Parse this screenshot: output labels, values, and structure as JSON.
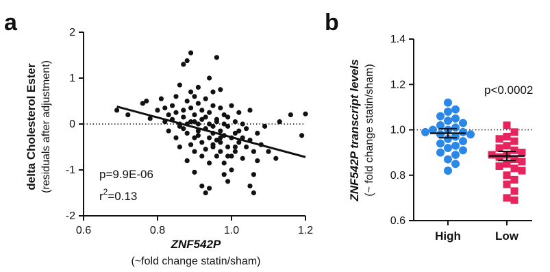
{
  "panels": {
    "a": "a",
    "b": "b"
  },
  "chart_data": [
    {
      "type": "scatter",
      "panel": "a",
      "xlabel": "ZNF542P",
      "xlabel_sub": "(~fold change statin/sham)",
      "ylabel": "delta Cholesterol Ester",
      "ylabel_sub": "(residuals after adjustment)",
      "xlim": [
        0.6,
        1.2
      ],
      "ylim": [
        -2,
        2
      ],
      "x_ticks": [
        "0.6",
        "0.8",
        "1.0",
        "1.2"
      ],
      "y_ticks": [
        "2",
        "1",
        "0",
        "-1",
        "-2"
      ],
      "x_tick_values": [
        0.6,
        0.8,
        1.0,
        1.2
      ],
      "y_tick_values": [
        2,
        1,
        0,
        -1,
        -2
      ],
      "reference_line": {
        "y": 0,
        "style": "dotted"
      },
      "regression_line": {
        "x": [
          0.69,
          1.2
        ],
        "y": [
          0.38,
          -0.72
        ]
      },
      "annotations": {
        "p_value": "p=9.9E-06",
        "r2_base": "r",
        "r2_sup": "2",
        "r2_value": "=0.13"
      },
      "points": [
        [
          0.69,
          0.3
        ],
        [
          0.72,
          0.2
        ],
        [
          0.76,
          0.45
        ],
        [
          0.77,
          0.5
        ],
        [
          0.78,
          0.12
        ],
        [
          0.8,
          0.3
        ],
        [
          0.81,
          0.55
        ],
        [
          0.82,
          0.05
        ],
        [
          0.82,
          0.35
        ],
        [
          0.83,
          0.2
        ],
        [
          0.83,
          -0.15
        ],
        [
          0.84,
          0.4
        ],
        [
          0.84,
          0.1
        ],
        [
          0.85,
          0.25
        ],
        [
          0.85,
          -0.3
        ],
        [
          0.85,
          0.6
        ],
        [
          0.86,
          0.0
        ],
        [
          0.86,
          0.85
        ],
        [
          0.86,
          -0.5
        ],
        [
          0.87,
          0.3
        ],
        [
          0.87,
          -0.1
        ],
        [
          0.87,
          0.15
        ],
        [
          0.87,
          1.3
        ],
        [
          0.88,
          -0.2
        ],
        [
          0.88,
          0.5
        ],
        [
          0.88,
          -0.8
        ],
        [
          0.88,
          1.38
        ],
        [
          0.89,
          0.05
        ],
        [
          0.89,
          1.55
        ],
        [
          0.89,
          -0.45
        ],
        [
          0.89,
          0.35
        ],
        [
          0.89,
          0.7
        ],
        [
          0.9,
          0.2
        ],
        [
          0.9,
          -0.3
        ],
        [
          0.9,
          -0.6
        ],
        [
          0.9,
          0.6
        ],
        [
          0.9,
          -1.05
        ],
        [
          0.91,
          0.0
        ],
        [
          0.91,
          -0.15
        ],
        [
          0.91,
          0.45
        ],
        [
          0.91,
          -0.25
        ],
        [
          0.91,
          0.8
        ],
        [
          0.92,
          0.1
        ],
        [
          0.92,
          -0.4
        ],
        [
          0.92,
          -1.35
        ],
        [
          0.92,
          -0.7
        ],
        [
          0.92,
          0.3
        ],
        [
          0.93,
          0.55
        ],
        [
          0.93,
          0.15
        ],
        [
          0.93,
          -0.1
        ],
        [
          0.93,
          -0.55
        ],
        [
          0.93,
          -1.5
        ],
        [
          0.94,
          0.0
        ],
        [
          0.94,
          -0.3
        ],
        [
          0.94,
          0.25
        ],
        [
          0.94,
          1.0
        ],
        [
          0.94,
          -0.85
        ],
        [
          0.94,
          -1.4
        ],
        [
          0.95,
          0.7
        ],
        [
          0.95,
          -0.05
        ],
        [
          0.95,
          -0.5
        ],
        [
          0.95,
          0.4
        ],
        [
          0.95,
          -0.2
        ],
        [
          0.96,
          0.1
        ],
        [
          0.96,
          1.45
        ],
        [
          0.96,
          -0.35
        ],
        [
          0.96,
          -0.7
        ],
        [
          0.96,
          0.05
        ],
        [
          0.97,
          -0.6
        ],
        [
          0.97,
          -0.15
        ],
        [
          0.97,
          0.35
        ],
        [
          0.97,
          -0.4
        ],
        [
          0.97,
          0.75
        ],
        [
          0.98,
          0.0
        ],
        [
          0.98,
          -1.1
        ],
        [
          0.98,
          -0.25
        ],
        [
          0.98,
          0.2
        ],
        [
          0.98,
          -0.85
        ],
        [
          0.99,
          -1.25
        ],
        [
          0.99,
          -0.5
        ],
        [
          0.99,
          0.15
        ],
        [
          0.99,
          -0.05
        ],
        [
          1.0,
          -0.3
        ],
        [
          1.0,
          -0.7
        ],
        [
          1.0,
          0.4
        ],
        [
          1.0,
          -1.0
        ],
        [
          1.01,
          0.05
        ],
        [
          1.01,
          -0.2
        ],
        [
          1.01,
          -0.6
        ],
        [
          1.02,
          -0.15
        ],
        [
          1.02,
          -0.4
        ],
        [
          1.02,
          0.25
        ],
        [
          1.03,
          -0.75
        ],
        [
          1.03,
          0.0
        ],
        [
          1.03,
          -0.3
        ],
        [
          1.04,
          -0.5
        ],
        [
          1.04,
          -0.1
        ],
        [
          1.05,
          -1.35
        ],
        [
          1.05,
          -0.35
        ],
        [
          1.05,
          0.3
        ],
        [
          1.06,
          -1.1
        ],
        [
          1.06,
          -0.6
        ],
        [
          1.07,
          -0.2
        ],
        [
          1.07,
          -0.8
        ],
        [
          1.08,
          -0.45
        ],
        [
          1.09,
          -0.05
        ],
        [
          1.1,
          -0.6
        ],
        [
          1.12,
          -0.75
        ],
        [
          1.13,
          0.05
        ],
        [
          1.16,
          0.2
        ],
        [
          1.19,
          -0.25
        ],
        [
          1.2,
          0.22
        ],
        [
          1.06,
          -1.5
        ],
        [
          0.86,
          -0.05
        ],
        [
          0.88,
          0.0
        ],
        [
          0.9,
          0.05
        ],
        [
          0.95,
          -0.45
        ],
        [
          0.97,
          -0.3
        ],
        [
          0.99,
          -0.7
        ],
        [
          1.01,
          -0.5
        ]
      ]
    },
    {
      "type": "scatter",
      "panel": "b",
      "ylabel": "ZNF542P transcript levels",
      "ylabel_sub": "(~ fold change statin/sham)",
      "categories": [
        "High",
        "Low"
      ],
      "ylim": [
        0.6,
        1.4
      ],
      "y_ticks": [
        "1.4",
        "1.2",
        "1.0",
        "0.8",
        "0.6"
      ],
      "y_tick_values": [
        1.4,
        1.2,
        1.0,
        0.8,
        0.6
      ],
      "reference_line": {
        "y": 1.0,
        "style": "dotted"
      },
      "annotation": "p<0.0002",
      "series": [
        {
          "category": "High",
          "color": "#2b88e6",
          "marker": "circle",
          "mean": 0.985,
          "sem": 0.02,
          "values": [
            1.12,
            1.09,
            1.08,
            1.06,
            1.05,
            1.04,
            1.03,
            1.02,
            1.01,
            1.0,
            1.0,
            0.99,
            0.99,
            0.98,
            0.98,
            0.97,
            0.96,
            0.95,
            0.94,
            0.93,
            0.92,
            0.91,
            0.9,
            0.89,
            0.87,
            0.85,
            0.82
          ]
        },
        {
          "category": "Low",
          "color": "#e8245e",
          "marker": "square",
          "mean": 0.885,
          "sem": 0.02,
          "values": [
            1.02,
            0.99,
            0.97,
            0.96,
            0.95,
            0.93,
            0.92,
            0.91,
            0.9,
            0.89,
            0.89,
            0.88,
            0.87,
            0.86,
            0.85,
            0.84,
            0.83,
            0.82,
            0.8,
            0.78,
            0.76,
            0.73,
            0.7,
            0.69
          ]
        }
      ]
    }
  ]
}
